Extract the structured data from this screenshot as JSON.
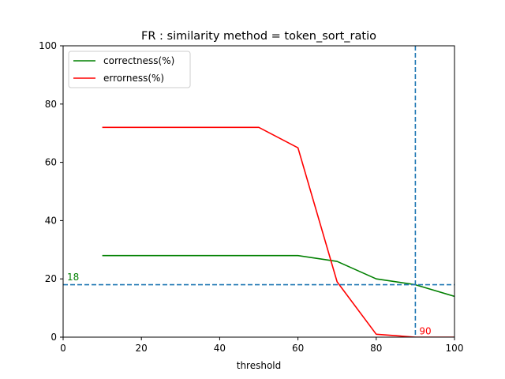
{
  "chart_data": {
    "type": "line",
    "title": "FR : similarity method = token_sort_ratio",
    "xlabel": "threshold",
    "ylabel": "",
    "xlim": [
      0,
      100
    ],
    "ylim": [
      0,
      100
    ],
    "xticks": [
      0,
      20,
      40,
      60,
      80,
      100
    ],
    "yticks": [
      0,
      20,
      40,
      60,
      80,
      100
    ],
    "grid": false,
    "legend_position": "upper-left",
    "series": [
      {
        "name": "correctness(%)",
        "color": "#008000",
        "x": [
          10,
          20,
          30,
          40,
          50,
          60,
          70,
          80,
          90,
          100
        ],
        "y": [
          28,
          28,
          28,
          28,
          28,
          28,
          26,
          20,
          18,
          14
        ]
      },
      {
        "name": "errorness(%)",
        "color": "#ff0000",
        "x": [
          10,
          20,
          30,
          40,
          50,
          60,
          70,
          80,
          90,
          100
        ],
        "y": [
          72,
          72,
          72,
          72,
          72,
          65,
          19,
          1,
          0,
          0
        ]
      }
    ],
    "reference_lines": [
      {
        "orientation": "horizontal",
        "value": 18,
        "color": "#1f77b4",
        "style": "dashed"
      },
      {
        "orientation": "vertical",
        "value": 90,
        "color": "#1f77b4",
        "style": "dashed"
      }
    ],
    "annotations": [
      {
        "text": "18",
        "color": "#008000",
        "x": 1,
        "y": 19.5
      },
      {
        "text": "90",
        "color": "#ff0000",
        "x": 91,
        "y": 1
      }
    ]
  }
}
